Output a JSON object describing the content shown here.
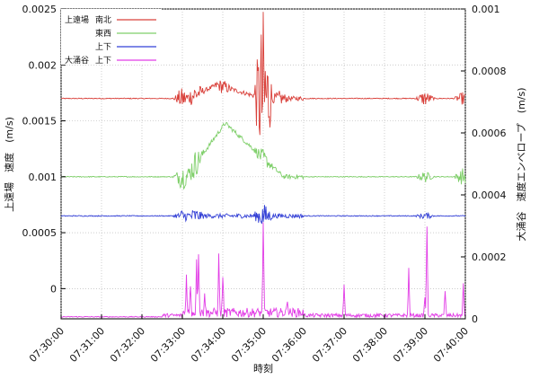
{
  "chart_data": {
    "type": "line",
    "xlabel": "時刻",
    "ylabel_left": "上遠場　速度　(m/s)",
    "ylabel_right": "大涌谷　速度エンベロープ　(m/s)",
    "x_ticks": [
      "07:30:00",
      "07:31:00",
      "07:32:00",
      "07:33:00",
      "07:34:00",
      "07:35:00",
      "07:36:00",
      "07:37:00",
      "07:38:00",
      "07:39:00",
      "07:40:00"
    ],
    "x_range_minutes": [
      0,
      10
    ],
    "y_left_ticks": [
      "0",
      "0.0005",
      "0.001",
      "0.0015",
      "0.002",
      "0.0025"
    ],
    "y_left_values": [
      0,
      0.0005,
      0.001,
      0.0015,
      0.002,
      0.0025
    ],
    "y_left_range": [
      -0.00027,
      0.0025
    ],
    "y_right_ticks": [
      "0",
      "0.0002",
      "0.0004",
      "0.0006",
      "0.0008",
      "0.001"
    ],
    "y_right_values": [
      0,
      0.0002,
      0.0004,
      0.0006,
      0.0008,
      0.001
    ],
    "y_right_range": [
      0,
      0.001
    ],
    "grid": true,
    "legend_position": "top-left",
    "legend": [
      {
        "group": "上遠場",
        "component": "南北",
        "color": "#d9403a"
      },
      {
        "group": "",
        "component": "東西",
        "color": "#7fcf6a"
      },
      {
        "group": "",
        "component": "上下",
        "color": "#3340d6"
      },
      {
        "group": "大涌谷",
        "component": "上下",
        "color": "#e23ce6"
      }
    ],
    "series": [
      {
        "component": "南北",
        "axis": "left",
        "color": "#d9403a",
        "baseline": 0.0017,
        "events": [
          {
            "t": 3.0,
            "a": 8e-05
          },
          {
            "t": 3.3,
            "a": 9e-05
          },
          {
            "t": 4.0,
            "a": 5e-05
          },
          {
            "t": 5.0,
            "a": 0.0008
          },
          {
            "t": 5.4,
            "a": 5e-05
          },
          {
            "t": 9.0,
            "a": 7e-05
          },
          {
            "t": 9.95,
            "a": 6e-05
          }
        ],
        "bump": {
          "t0": 3.1,
          "t1": 5.0,
          "peak": 0.00012
        }
      },
      {
        "component": "東西",
        "axis": "left",
        "color": "#7fcf6a",
        "baseline": 0.001,
        "events": [
          {
            "t": 3.0,
            "a": 0.0001
          },
          {
            "t": 3.3,
            "a": 0.00012
          },
          {
            "t": 5.0,
            "a": 6e-05
          },
          {
            "t": 9.0,
            "a": 5e-05
          },
          {
            "t": 9.95,
            "a": 8e-05
          }
        ],
        "bump": {
          "t0": 3.1,
          "t1": 5.5,
          "peak": 0.00048
        }
      },
      {
        "component": "上下",
        "axis": "left",
        "color": "#3340d6",
        "baseline": 0.00065,
        "events": [
          {
            "t": 3.0,
            "a": 4e-05
          },
          {
            "t": 3.3,
            "a": 5e-05
          },
          {
            "t": 5.0,
            "a": 0.0001
          },
          {
            "t": 9.0,
            "a": 3e-05
          }
        ],
        "bump": {
          "t0": 0,
          "t1": 0,
          "peak": 0
        }
      },
      {
        "component": "大涌谷 上下",
        "axis": "right",
        "color": "#e23ce6",
        "baseline": 5e-06,
        "spikes": [
          {
            "t": 3.1,
            "a": 0.00012
          },
          {
            "t": 3.2,
            "a": 9e-05
          },
          {
            "t": 3.35,
            "a": 0.00016
          },
          {
            "t": 3.4,
            "a": 0.0002
          },
          {
            "t": 3.55,
            "a": 7e-05
          },
          {
            "t": 3.9,
            "a": 0.00018
          },
          {
            "t": 4.0,
            "a": 0.00012
          },
          {
            "t": 5.0,
            "a": 0.00029
          },
          {
            "t": 5.6,
            "a": 5e-05
          },
          {
            "t": 7.0,
            "a": 0.0001
          },
          {
            "t": 8.6,
            "a": 0.00015
          },
          {
            "t": 9.0,
            "a": 6e-05
          },
          {
            "t": 9.05,
            "a": 0.00029
          },
          {
            "t": 9.5,
            "a": 8e-05
          },
          {
            "t": 9.95,
            "a": 0.0001
          }
        ],
        "noise_start": 2.5
      }
    ]
  }
}
